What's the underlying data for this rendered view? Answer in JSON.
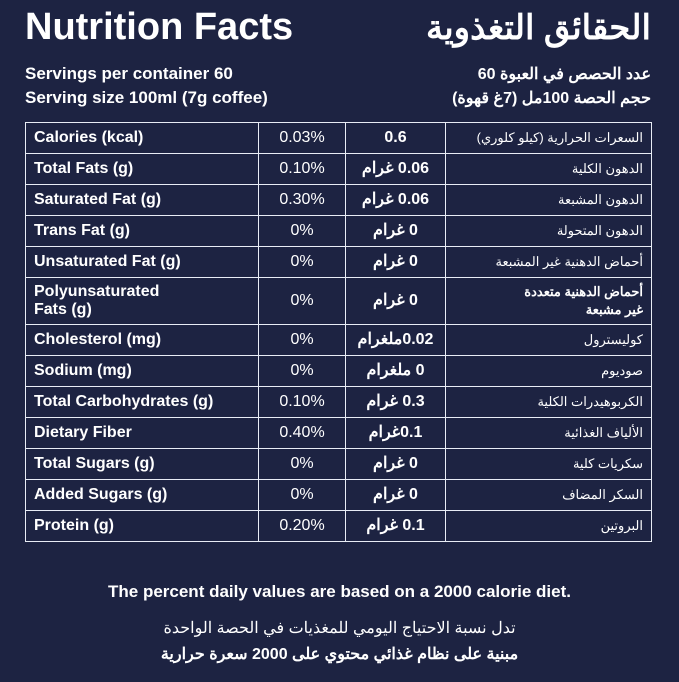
{
  "header": {
    "title_en": "Nutrition Facts",
    "title_ar": "الحقائق التغذوية",
    "servings_en": "Servings per container 60",
    "serving_size_en": "Serving size 100ml (7g coffee)",
    "servings_ar": "عدد الحصص في العبوة 60",
    "serving_size_ar": "حجم الحصة 100مل (7غ قهوة)"
  },
  "table": {
    "rows": [
      [
        "Calories (kcal)",
        "0.03%",
        "0.6",
        "السعرات الحرارية (كيلو كلوري)"
      ],
      [
        "Total Fats (g)",
        "0.10%",
        "0.06 غرام",
        "الدهون الكلية"
      ],
      [
        "Saturated Fat (g)",
        "0.30%",
        "0.06 غرام",
        "الدهون المشبعة"
      ],
      [
        "Trans Fat (g)",
        "0%",
        "0 غرام",
        "الدهون المتحولة"
      ],
      [
        "Unsaturated Fat (g)",
        "0%",
        "0 غرام",
        "أحماض الدهنية غير المشبعة"
      ],
      [
        "Polyunsaturated Fats (g)",
        "0%",
        "0 غرام",
        "أحماض الدهنية متعددة غير مشبعة"
      ],
      [
        "Cholesterol (mg)",
        "0%",
        "0.02ملغرام",
        "كوليسترول"
      ],
      [
        "Sodium (mg)",
        "0%",
        "0 ملغرام",
        "صوديوم"
      ],
      [
        "Total Carbohydrates (g)",
        "0.10%",
        "0.3 غرام",
        "الكربوهيدرات الكلية"
      ],
      [
        "Dietary Fiber",
        "0.40%",
        "0.1غرام",
        "الألياف الغذائية"
      ],
      [
        "Total Sugars (g)",
        "0%",
        "0 غرام",
        "سكريات كلية"
      ],
      [
        "Added Sugars (g)",
        "0%",
        "0 غرام",
        "السكر المضاف"
      ],
      [
        "Protein (g)",
        "0.20%",
        "0.1 غرام",
        "البروتين"
      ]
    ]
  },
  "footer": {
    "note_en": "The percent daily values are based on a 2000 calorie diet.",
    "note_ar_1": "تدل نسبة الاحتياج اليومي للمغذيات في الحصة الواحدة",
    "note_ar_2": "مبنية على نظام غذائي محتوي على 2000 سعرة حرارية"
  }
}
